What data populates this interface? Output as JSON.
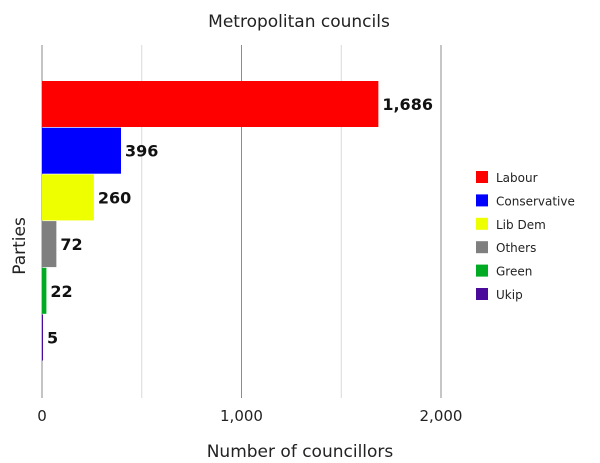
{
  "chart_data": {
    "type": "bar",
    "orientation": "horizontal",
    "title": "Metropolitan councils",
    "xlabel": "Number of councillors",
    "ylabel": "Parties",
    "xlim": [
      0,
      2000
    ],
    "xticks": [
      "0",
      "1,000",
      "2,000"
    ],
    "grid": true,
    "legend_position": "right",
    "categories": [
      "Labour",
      "Conservative",
      "Lib Dem",
      "Others",
      "Green",
      "Ukip"
    ],
    "values": [
      1686,
      396,
      260,
      72,
      22,
      5
    ],
    "value_labels": [
      "1,686",
      "396",
      "260",
      "72",
      "22",
      "5"
    ],
    "colors": [
      "#ff0000",
      "#0000ff",
      "#eeff00",
      "#7f7f7f",
      "#00aa22",
      "#4b0a9a"
    ]
  }
}
